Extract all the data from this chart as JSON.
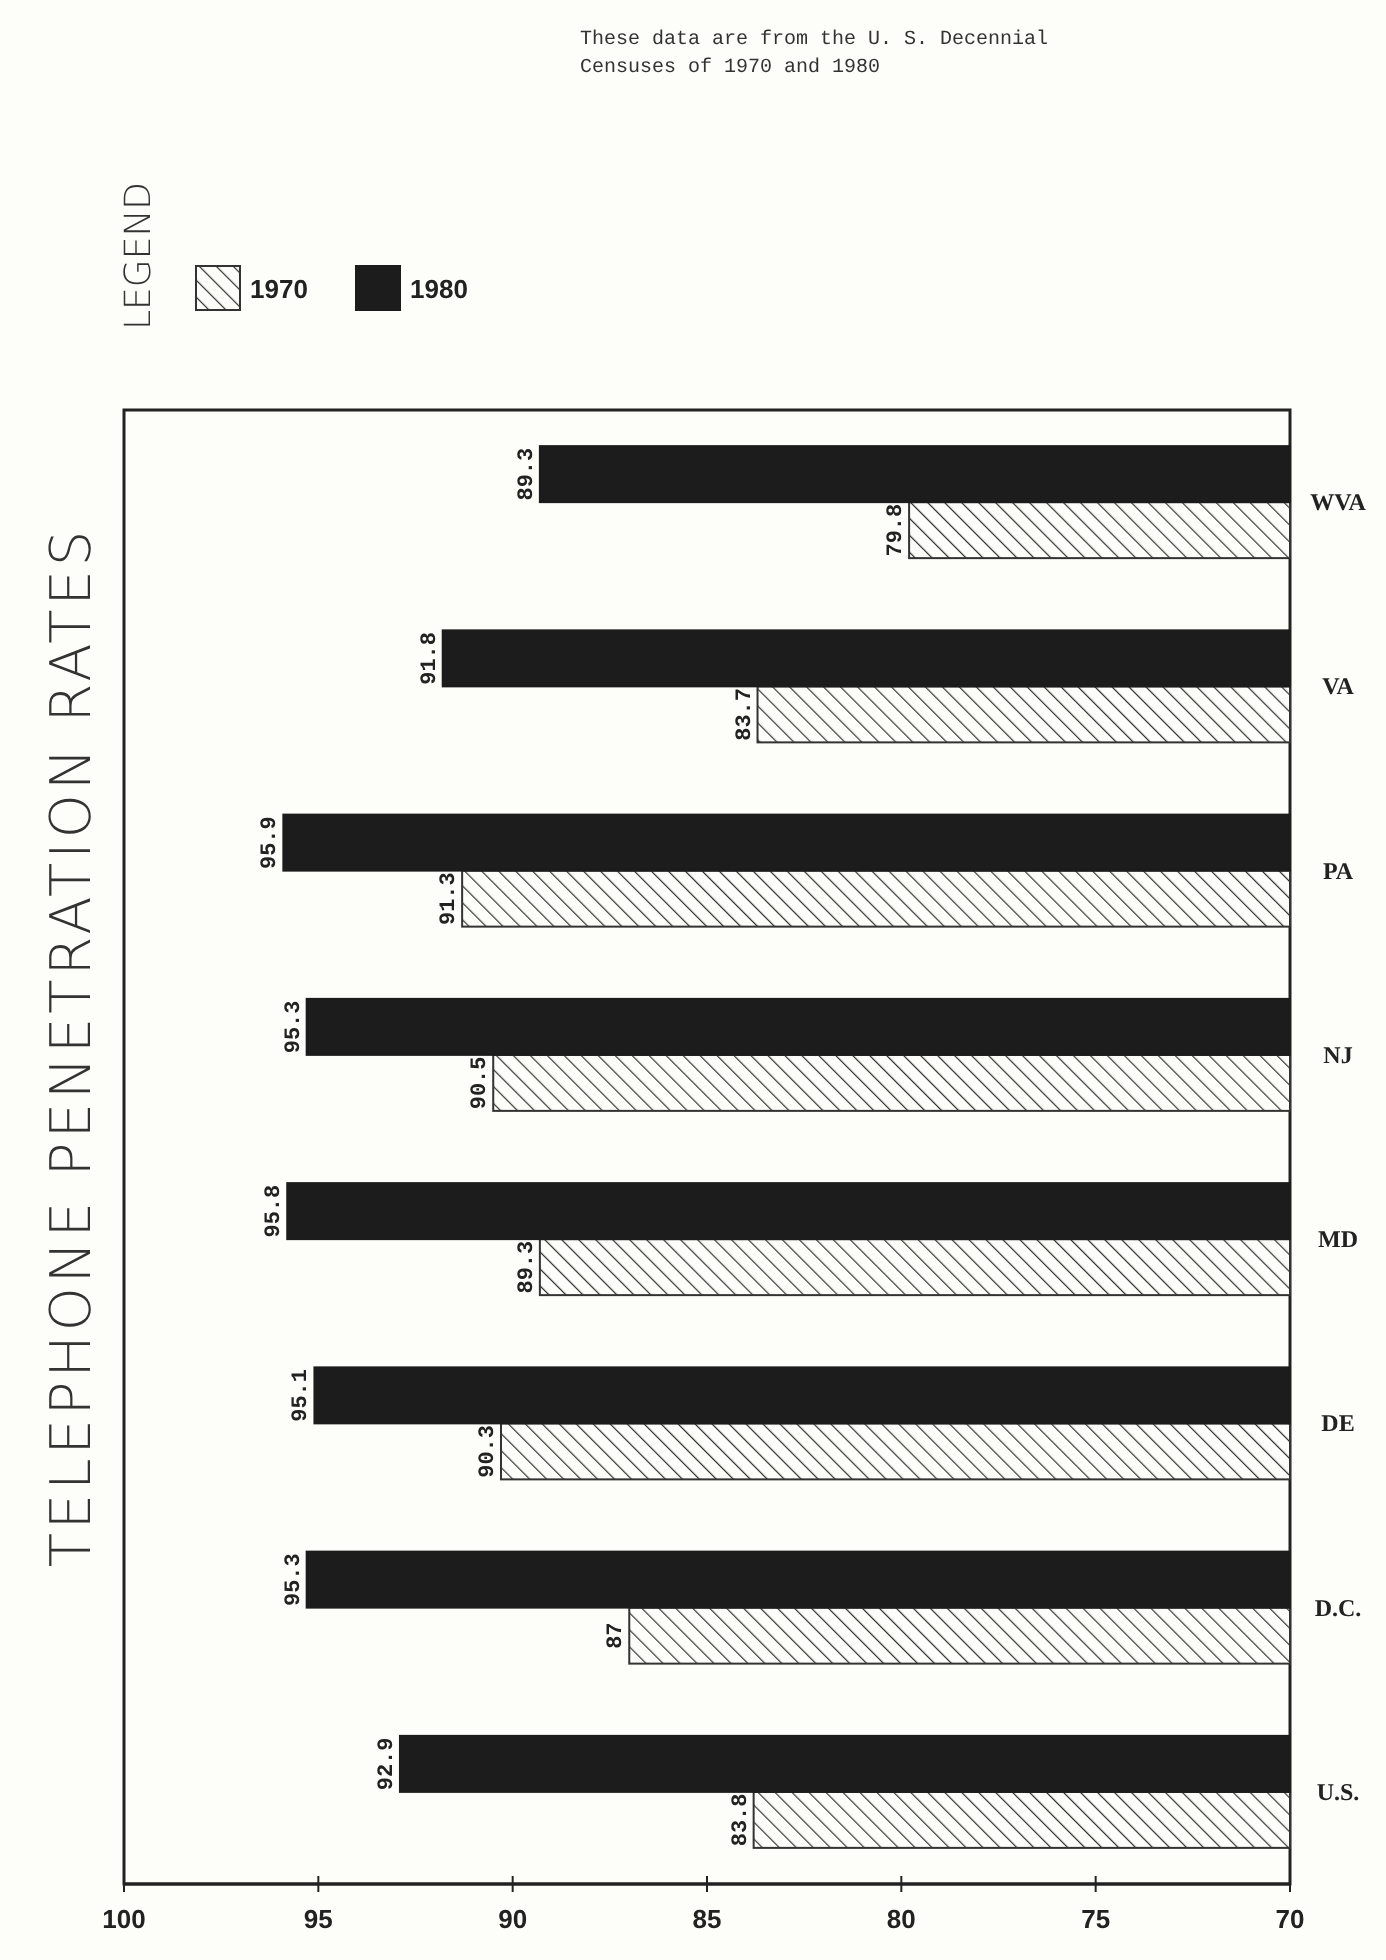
{
  "chart_data": {
    "type": "bar",
    "orientation": "horizontal",
    "title": "TELEPHONE PENETRATION RATES",
    "legend_title": "LEGEND",
    "legend": "top left",
    "data_labels": true,
    "categories": [
      "WVA",
      "VA",
      "PA",
      "NJ",
      "MD",
      "DE",
      "D.C.",
      "U.S."
    ],
    "series": [
      {
        "name": "1970",
        "color": "#333333",
        "values": [
          79.8,
          83.7,
          91.3,
          90.5,
          89.3,
          90.3,
          87,
          83.8
        ]
      },
      {
        "name": "1980",
        "color": "#1c1c1c",
        "values": [
          89.3,
          91.8,
          95.9,
          95.3,
          95.8,
          95.1,
          95.3,
          92.9
        ]
      }
    ],
    "xlim": [
      100,
      70
    ],
    "xticks": [
      100,
      95,
      90,
      85,
      80,
      75,
      70
    ],
    "annotations": [
      "These data are from the U. S. Decennial Censuses of 1970 and 1980"
    ]
  }
}
